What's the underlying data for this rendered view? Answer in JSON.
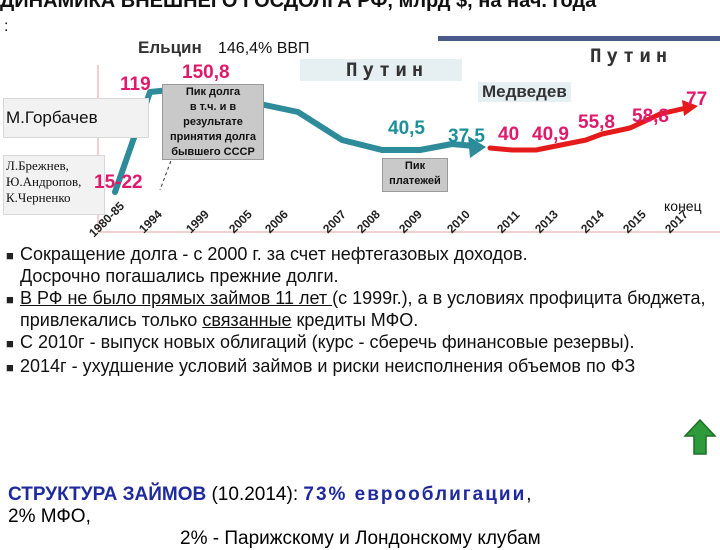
{
  "title": "ДИНАМИКА ВНЕШНЕГО ГОСДОЛГА РФ, млрд $, на нач. года",
  "title_colon": ":",
  "chart": {
    "leaders": {
      "yeltsin": "Ельцин",
      "gdp_note": "146,4% ВВП",
      "putin_1": "Путин",
      "putin_2": "Путин",
      "medvedev": "Медведев",
      "gorbachev": "М.Горбачев",
      "early": [
        "Л.Брежнев,",
        "Ю.Андропов,",
        "К.Черненко"
      ]
    },
    "values": {
      "v1": "119",
      "v2": "150,8",
      "v3": "15-22",
      "v4": "40,5",
      "v5": "37,5",
      "v6": "40",
      "v7": "40,9",
      "v8": "55,8",
      "v9": "58,8",
      "v10": "77"
    },
    "callout_peak": [
      "Пик долга",
      "в т.ч. и в",
      "результате",
      "принятия долга",
      "бывшего СССР"
    ],
    "callout_payments": [
      "Пик",
      "платежей"
    ],
    "years": [
      "1980-85",
      "1994",
      "1999",
      "2005",
      "2006",
      "2007",
      "2008",
      "2009",
      "2010",
      "2011",
      "2013",
      "2014",
      "2015",
      "2017"
    ],
    "end_label": "конец",
    "colors": {
      "line_early": "#2e8b9a",
      "line_late": "#e51a1a",
      "value_pink": "#e0196b",
      "value_teal": "#1b8f9a"
    }
  },
  "bullets": {
    "b1_l1": "Сокращение долга - с 2000 г.  за счет нефтегазовых доходов.",
    "b1_l2": "Досрочно погашались прежние долги.",
    "b2_u": "В РФ не было прямых займов  11 лет ",
    "b2_rest": "(с 1999г.), а в условиях профицита бюджета, привлекались только ",
    "b2_u2": "связанные",
    "b2_end": " кредиты МФО.",
    "b3": "С 2010г - выпуск новых облигаций (курс - сберечь финансовые резервы).",
    "b4": "2014г - ухудшение условий займов и риски неисполнения объемов по ФЗ"
  },
  "structure": {
    "head": "СТРУКТУРА ЗАЙМОВ",
    "date": " (10.2014): ",
    "eurobonds": "73% еврооблигации",
    "comma": ",",
    "line2": "2% МФО,",
    "line3": "2% - Парижскому и Лондонскому клубам"
  }
}
